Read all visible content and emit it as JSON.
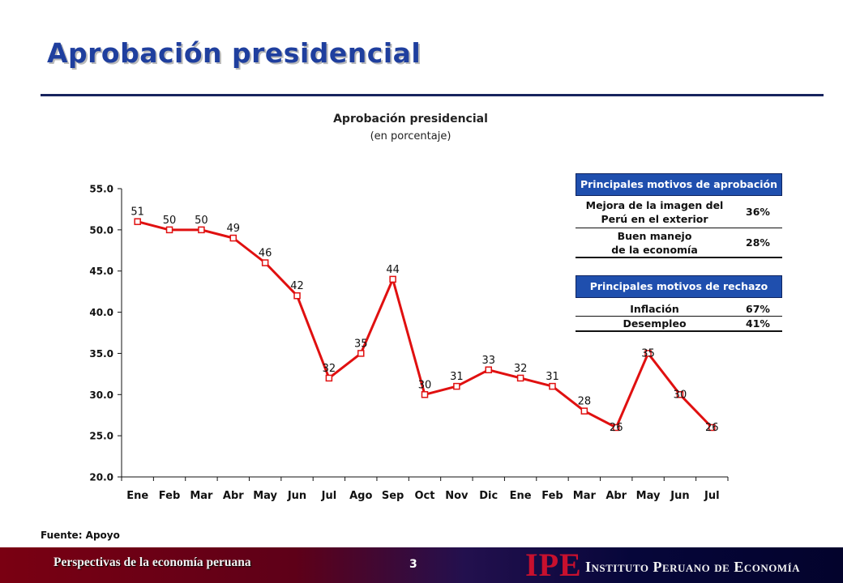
{
  "slide": {
    "title": "Aprobación presidencial"
  },
  "chart_data": {
    "type": "line",
    "title": "Aprobación presidencial",
    "subtitle": "(en porcentaje)",
    "categories": [
      "Ene",
      "Feb",
      "Mar",
      "Abr",
      "May",
      "Jun",
      "Jul",
      "Ago",
      "Sep",
      "Oct",
      "Nov",
      "Dic",
      "Ene",
      "Feb",
      "Mar",
      "Abr",
      "May",
      "Jun",
      "Jul"
    ],
    "series": [
      {
        "values": [
          51,
          50,
          50,
          49,
          46,
          42,
          32,
          35,
          44,
          30,
          31,
          33,
          32,
          31,
          28,
          26,
          35,
          30,
          26
        ],
        "color": "#e01010"
      }
    ],
    "y_ticks": [
      "20.0",
      "25.0",
      "30.0",
      "35.0",
      "40.0",
      "45.0",
      "50.0",
      "55.0"
    ],
    "ylim": [
      20,
      55
    ],
    "grid": false,
    "marker": "square"
  },
  "tables": {
    "approval": {
      "header": "Principales motivos de aprobación",
      "rows": [
        {
          "label": "Mejora de la imagen del\nPerú en el exterior",
          "value": "36%"
        },
        {
          "label": "Buen manejo\nde la economía",
          "value": "28%"
        }
      ]
    },
    "rejection": {
      "header": "Principales motivos de rechazo",
      "rows": [
        {
          "label": "Inflación",
          "value": "67%"
        },
        {
          "label": "Desempleo",
          "value": "41%"
        }
      ]
    }
  },
  "source": "Fuente: Apoyo",
  "footer": {
    "left_text": "Perspectivas de la economía peruana",
    "page_number": "3",
    "logo_abbr": "IPE",
    "logo_name": "Instituto Peruano de Economía"
  },
  "colors": {
    "title": "#1f3f9e",
    "rule": "#17245e",
    "line": "#e01010",
    "table_header": "#1f4fae",
    "logo": "#c8102e"
  }
}
